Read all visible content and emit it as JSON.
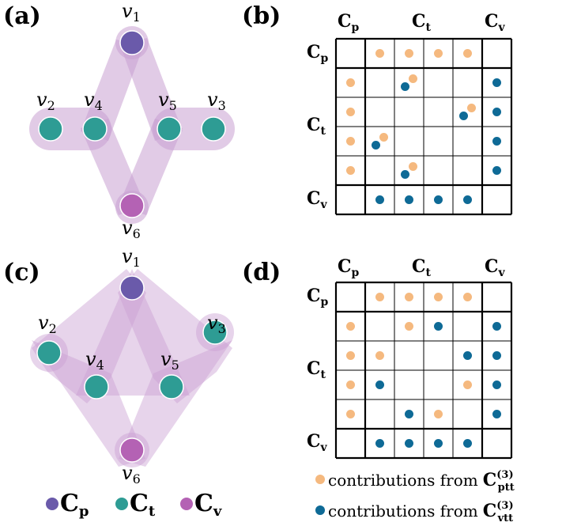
{
  "panels": {
    "a": "(a)",
    "b": "(b)",
    "c": "(c)",
    "d": "(d)"
  },
  "vertices": {
    "v1": {
      "base": "v",
      "sub": "1"
    },
    "v2": {
      "base": "v",
      "sub": "2"
    },
    "v3": {
      "base": "v",
      "sub": "3"
    },
    "v4": {
      "base": "v",
      "sub": "4"
    },
    "v5": {
      "base": "v",
      "sub": "5"
    },
    "v6": {
      "base": "v",
      "sub": "6"
    }
  },
  "classes": {
    "p": {
      "base": "C",
      "sub": "p"
    },
    "t": {
      "base": "C",
      "sub": "t"
    },
    "v": {
      "base": "C",
      "sub": "v"
    }
  },
  "colors": {
    "cp": "#6a5aaa",
    "ct": "#2e9c94",
    "cv": "#b462b4",
    "hyperedge": "#c9a0d2",
    "ptt": "#f5b97f",
    "vtt": "#0e6a96",
    "grid": "#000000"
  },
  "matrix_b": {
    "orange": [
      [
        0,
        1
      ],
      [
        0,
        2
      ],
      [
        0,
        3
      ],
      [
        0,
        4
      ],
      [
        1,
        0
      ],
      [
        2,
        0
      ],
      [
        3,
        0
      ],
      [
        4,
        0
      ],
      [
        1,
        2
      ],
      [
        2,
        4
      ],
      [
        3,
        1
      ],
      [
        4,
        2
      ]
    ],
    "blue": [
      [
        5,
        1
      ],
      [
        5,
        2
      ],
      [
        5,
        3
      ],
      [
        5,
        4
      ],
      [
        1,
        5
      ],
      [
        2,
        5
      ],
      [
        3,
        5
      ],
      [
        4,
        5
      ],
      [
        1,
        2
      ],
      [
        2,
        4
      ],
      [
        3,
        1
      ],
      [
        4,
        2
      ]
    ]
  },
  "matrix_d": {
    "orange": [
      [
        0,
        1
      ],
      [
        0,
        2
      ],
      [
        0,
        3
      ],
      [
        0,
        4
      ],
      [
        1,
        0
      ],
      [
        2,
        0
      ],
      [
        3,
        0
      ],
      [
        4,
        0
      ],
      [
        1,
        2
      ],
      [
        2,
        1
      ],
      [
        3,
        4
      ],
      [
        4,
        3
      ]
    ],
    "blue": [
      [
        5,
        1
      ],
      [
        5,
        2
      ],
      [
        5,
        3
      ],
      [
        5,
        4
      ],
      [
        1,
        5
      ],
      [
        2,
        5
      ],
      [
        3,
        5
      ],
      [
        4,
        5
      ],
      [
        1,
        3
      ],
      [
        2,
        4
      ],
      [
        3,
        1
      ],
      [
        4,
        2
      ]
    ]
  },
  "legend": {
    "contrib_prefix": "contributions from",
    "ptt": {
      "base": "C",
      "sup": "(3)",
      "sub": "ptt"
    },
    "vtt": {
      "base": "C",
      "sup": "(3)",
      "sub": "vtt"
    }
  }
}
